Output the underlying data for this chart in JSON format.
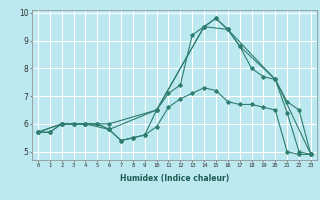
{
  "title": "",
  "xlabel": "Humidex (Indice chaleur)",
  "background_color": "#bce8f0",
  "grid_color": "#ffffff",
  "line_color": "#2e7d6e",
  "xlim": [
    -0.5,
    23.5
  ],
  "ylim": [
    4.7,
    10.1
  ],
  "xticks": [
    0,
    1,
    2,
    3,
    4,
    5,
    6,
    7,
    8,
    9,
    10,
    11,
    12,
    13,
    14,
    15,
    16,
    17,
    18,
    19,
    20,
    21,
    22,
    23
  ],
  "yticks": [
    5,
    6,
    7,
    8,
    9,
    10
  ],
  "lines": [
    {
      "x": [
        0,
        1,
        2,
        3,
        4,
        5,
        6,
        7,
        8,
        9,
        10,
        11,
        12,
        13,
        14,
        15,
        16,
        17,
        18,
        19,
        20,
        21,
        22,
        23
      ],
      "y": [
        5.7,
        5.7,
        6.0,
        6.0,
        6.0,
        6.0,
        5.8,
        5.4,
        5.5,
        5.6,
        5.9,
        6.6,
        6.9,
        7.1,
        7.3,
        7.2,
        6.8,
        6.7,
        6.7,
        6.6,
        6.5,
        5.0,
        4.9,
        4.9
      ]
    },
    {
      "x": [
        0,
        1,
        2,
        3,
        4,
        5,
        6,
        7,
        8,
        9,
        10,
        11,
        12,
        13,
        14,
        15,
        16,
        17,
        18,
        19,
        20,
        21,
        22,
        23
      ],
      "y": [
        5.7,
        5.7,
        6.0,
        6.0,
        6.0,
        6.0,
        5.8,
        5.4,
        5.5,
        5.6,
        6.5,
        7.1,
        7.4,
        9.2,
        9.5,
        9.8,
        9.4,
        8.8,
        8.0,
        7.7,
        7.6,
        6.4,
        5.0,
        4.9
      ]
    },
    {
      "x": [
        0,
        2,
        3,
        4,
        5,
        6,
        10,
        14,
        15,
        16,
        17,
        20,
        21,
        22,
        23
      ],
      "y": [
        5.7,
        6.0,
        6.0,
        6.0,
        6.0,
        6.0,
        6.5,
        9.5,
        9.8,
        9.4,
        8.8,
        7.6,
        6.8,
        6.5,
        4.9
      ]
    },
    {
      "x": [
        0,
        2,
        4,
        6,
        10,
        14,
        16,
        20,
        23
      ],
      "y": [
        5.7,
        6.0,
        6.0,
        5.8,
        6.5,
        9.5,
        9.4,
        7.6,
        4.9
      ]
    }
  ]
}
